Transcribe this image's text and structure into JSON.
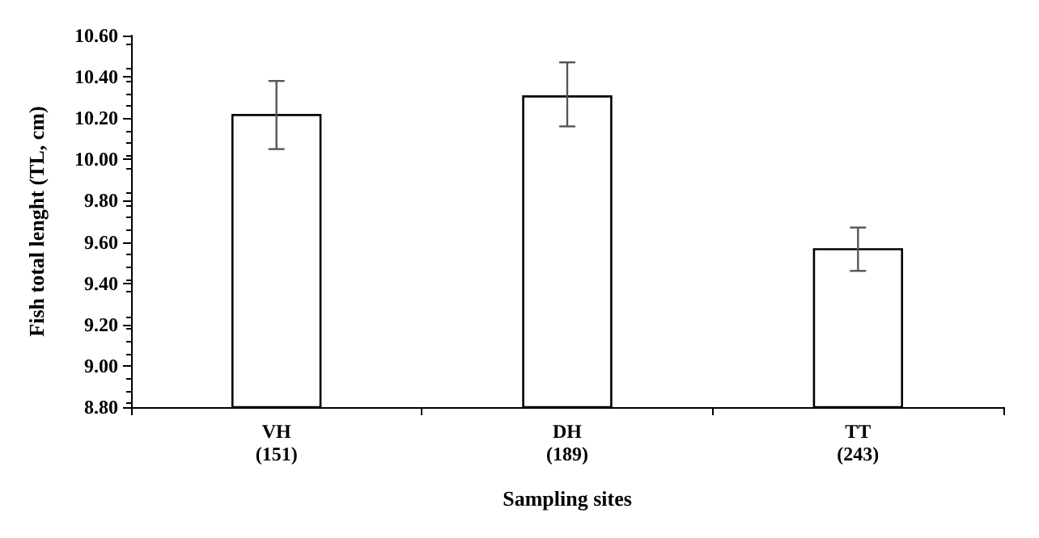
{
  "chart_data": {
    "type": "bar",
    "xlabel": "Sampling sites",
    "ylabel": "Fish total lenght (TL, cm)",
    "categories": [
      "VH\n(151)",
      "DH\n(189)",
      "TT\n(243)"
    ],
    "values": [
      10.22,
      10.31,
      9.57
    ],
    "errors": [
      [
        10.05,
        10.38
      ],
      [
        10.16,
        10.47
      ],
      [
        9.46,
        9.67
      ]
    ],
    "color": "#ffffff",
    "ylim": [
      8.8,
      10.6
    ],
    "yticks": [
      {
        "value": 8.8,
        "label": "8.80"
      },
      {
        "value": 9.0,
        "label": "9.00"
      },
      {
        "value": 9.2,
        "label": "9.20"
      },
      {
        "value": 9.4,
        "label": "9.40"
      },
      {
        "value": 9.6,
        "label": "9.60"
      },
      {
        "value": 9.8,
        "label": "9.80"
      },
      {
        "value": 10.0,
        "label": "10.00"
      },
      {
        "value": 10.2,
        "label": "10.20"
      },
      {
        "value": 10.4,
        "label": "10.40"
      },
      {
        "value": 10.6,
        "label": "10.60"
      }
    ],
    "grid": false
  }
}
